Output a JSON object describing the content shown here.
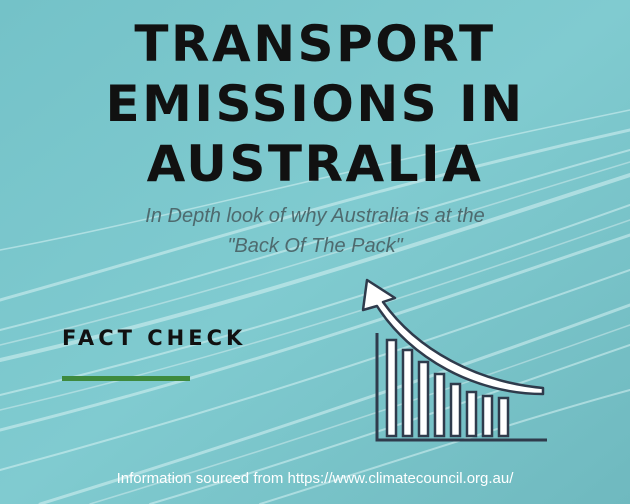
{
  "title": {
    "line1": "TRANSPORT",
    "line2": "EMISSIONS IN",
    "line3": "AUSTRALIA"
  },
  "subtitle": {
    "line1": "In Depth look of why Australia is at the",
    "line2": "\"Back Of The Pack\""
  },
  "fact_check": "FACT CHECK",
  "footer": "Information sourced from https://www.climatecouncil.org.au/",
  "graphic": {
    "icon": "rising-bar-chart-with-arrow-icon",
    "bar_count": 8
  },
  "colors": {
    "background": "#7dc8cd",
    "title_text": "#111111",
    "subtitle_text": "#4e6a6e",
    "accent_bar": "#3e8a3e",
    "footer_text": "#ffffff",
    "icon_stroke": "#2f3b4c"
  }
}
